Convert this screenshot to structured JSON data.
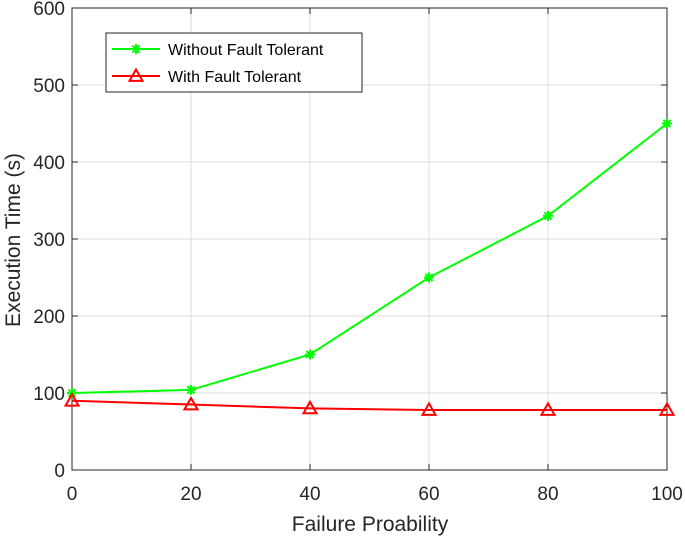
{
  "chart_data": {
    "type": "line",
    "title": "",
    "xlabel": "Failure Proability",
    "ylabel": "Execution Time (s)",
    "xlim": [
      0,
      100
    ],
    "ylim": [
      0,
      600
    ],
    "xticks": [
      0,
      20,
      40,
      60,
      80,
      100
    ],
    "yticks": [
      0,
      100,
      200,
      300,
      400,
      500,
      600
    ],
    "x": [
      0,
      20,
      40,
      60,
      80,
      100
    ],
    "grid": true,
    "legend_position": "top-left",
    "series": [
      {
        "name": "Without Fault Tolerant",
        "values": [
          100,
          104,
          150,
          250,
          330,
          450
        ],
        "color": "#00ff00",
        "marker": "asterisk"
      },
      {
        "name": "With Fault Tolerant",
        "values": [
          90,
          85,
          80,
          78,
          78,
          78
        ],
        "color": "#ff0000",
        "marker": "triangle"
      }
    ]
  }
}
